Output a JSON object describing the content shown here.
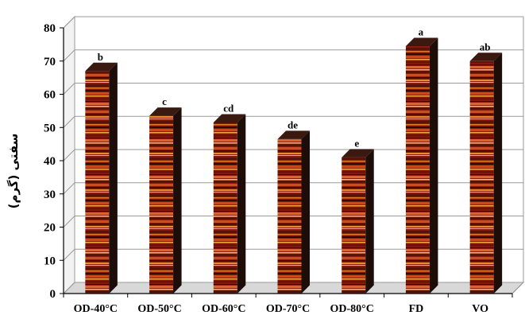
{
  "chart_data": {
    "type": "bar",
    "categories": [
      "OD-40°C",
      "OD-50°C",
      "OD-60°C",
      "OD-70°C",
      "OD-80°C",
      "FD",
      "VO"
    ],
    "values": [
      67,
      53.5,
      51.5,
      46.5,
      41,
      74.5,
      70
    ],
    "significance_labels": [
      "b",
      "c",
      "cd",
      "de",
      "e",
      "a",
      "ab"
    ],
    "ylabel": "سفتی (گرم)",
    "xlabel": "",
    "title": "",
    "ylim": [
      0,
      80
    ],
    "yticks": [
      0,
      10,
      20,
      30,
      40,
      50,
      60,
      70,
      80
    ],
    "grid": true,
    "legend": "none",
    "colors": {
      "bar_front_base": "#8a1a0c",
      "bar_stripe_light": "#e88a2e",
      "bar_stripe_dark": "#2a0a05",
      "bar_side": "#1c0d08",
      "bar_top": "#3a1a10",
      "grid": "#9a9a9a",
      "floor": "#d8d8d8"
    }
  }
}
